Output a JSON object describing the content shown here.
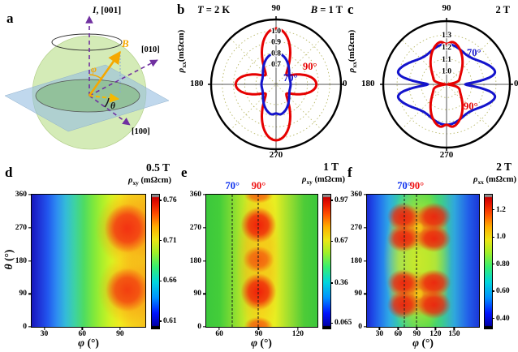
{
  "panels": {
    "a": {
      "letter": "a",
      "axis_top_sym": "I",
      "axis_top_rest": ", [001]",
      "axis_right": "[010]",
      "axis_front": "[100]",
      "field": "B",
      "phi": "φ",
      "theta": "θ"
    },
    "b": {
      "letter": "b",
      "t_sym": "T",
      "t_rest": " = 2 K",
      "b_sym": "B",
      "b_rest": " = 1 T",
      "rho": "ρ",
      "rho_sub": "xx",
      "rho_units": "(mΩcm)"
    },
    "c": {
      "letter": "c",
      "title": "2 T",
      "rho": "ρ",
      "rho_sub": "xx",
      "rho_units": "(mΩcm)"
    },
    "d": {
      "letter": "d",
      "title": "0.5 T",
      "rho": "ρ",
      "rho_sub": "xy",
      "rho_units": " (mΩcm)",
      "x_sym": "φ",
      "x_unit": " (°)",
      "y_sym": "θ",
      "y_unit": " (°)"
    },
    "e": {
      "letter": "e",
      "title": "1 T",
      "rho": "ρ",
      "rho_sub": "xy",
      "rho_units": " (mΩcm)",
      "x_sym": "φ",
      "x_unit": " (°)"
    },
    "f": {
      "letter": "f",
      "title": "2 T",
      "rho": "ρ",
      "rho_sub": "xx",
      "rho_units": " (mΩcm)",
      "x_sym": "φ",
      "x_unit": " (°)"
    }
  },
  "chart_data": [
    {
      "id": "b",
      "type": "polar",
      "temperature": "T = 2 K",
      "field": "B = 1 T",
      "radial_axis": {
        "label": "ρxx (mΩcm)",
        "min": 0.52,
        "max": 1.1,
        "ticks": [
          {
            "v": 0.7,
            "label": "0.7"
          },
          {
            "v": 0.8,
            "label": "0.8"
          },
          {
            "v": 0.9,
            "label": "0.9"
          },
          {
            "v": 1.0,
            "label": "1.0"
          }
        ]
      },
      "angle_ticks": [
        {
          "angle": 0,
          "label": "0"
        },
        {
          "angle": 90,
          "label": "90"
        },
        {
          "angle": 180,
          "label": "180"
        },
        {
          "angle": 270,
          "label": "270"
        }
      ],
      "series": [
        {
          "name": "90°",
          "color": "#e60000",
          "description": "four-lobed ρxx(angle): max ≈1.02 mΩcm at 90°/270°, ≈0.88 at 0°/180°, min ≈0.65 on diagonals",
          "base": 0.8,
          "harmonics": [
            {
              "k": 2,
              "amp": -0.07,
              "phase": 0
            },
            {
              "k": 4,
              "amp": 0.15,
              "phase": 0
            }
          ],
          "notches": []
        },
        {
          "name": "70°",
          "color": "#1414cc",
          "description": "small vertical peanut: max ≈0.78 at 90°/270°, min ≈0.65 at 0°/180°",
          "base": 0.705,
          "harmonics": [
            {
              "k": 2,
              "amp": 0.075,
              "phase": 90
            },
            {
              "k": 4,
              "amp": 0.02,
              "phase": 0
            }
          ],
          "notches": [
            {
              "angle": 90,
              "depth": 0.02,
              "width": 6
            },
            {
              "angle": 270,
              "depth": 0.02,
              "width": 6
            }
          ]
        }
      ]
    },
    {
      "id": "c",
      "type": "polar",
      "field": "2 T",
      "radial_axis": {
        "label": "ρxx (mΩcm)",
        "min": 0.89,
        "max": 1.415,
        "ticks": [
          {
            "v": 1.0,
            "label": "1.0"
          },
          {
            "v": 1.1,
            "label": "1.1"
          },
          {
            "v": 1.2,
            "label": "1.2"
          },
          {
            "v": 1.3,
            "label": "1.3"
          }
        ]
      },
      "angle_ticks": [
        {
          "angle": 0,
          "label": "0"
        },
        {
          "angle": 90,
          "label": "90"
        },
        {
          "angle": 180,
          "label": "180"
        },
        {
          "angle": 270,
          "label": "270"
        }
      ],
      "series": [
        {
          "name": "70°",
          "color": "#1414cc",
          "description": "horizontal butterfly: wings ≈1.30-1.33 near 0°/180°, pinched notch to ≈1.0 exactly at 0°/180°, ≈1.22 at 90°/270°",
          "base": 1.24,
          "harmonics": [
            {
              "k": 2,
              "amp": 0.06,
              "phase": 0
            },
            {
              "k": 4,
              "amp": 0.045,
              "phase": 0
            }
          ],
          "notches": [
            {
              "angle": 0,
              "depth": 0.3,
              "width": 8
            },
            {
              "angle": 180,
              "depth": 0.3,
              "width": 8
            }
          ]
        },
        {
          "name": "90°",
          "color": "#e60000",
          "description": "vertical butterfly: lobes ≈1.23 at 90°/270° with small cleft, deep pinch toward center at 0°/180°",
          "base": 1.1,
          "harmonics": [
            {
              "k": 2,
              "amp": 0.13,
              "phase": 90
            },
            {
              "k": 4,
              "amp": 0.03,
              "phase": 0
            }
          ],
          "notches": [
            {
              "angle": 0,
              "depth": 0.15,
              "width": 10
            },
            {
              "angle": 180,
              "depth": 0.15,
              "width": 10
            },
            {
              "angle": 90,
              "depth": 0.035,
              "width": 6
            },
            {
              "angle": 270,
              "depth": 0.035,
              "width": 6
            }
          ]
        }
      ]
    },
    {
      "id": "d",
      "type": "heatmap",
      "title": "0.5 T",
      "zlabel": "ρxy (mΩcm)",
      "description": "ρxy rises from ≈0.61 (blue, small φ) to ≈0.76 (red) near φ≈88°; hotspots at (φ≈88°, θ≈95°) and (φ≈88°, θ≈275°)",
      "x": {
        "label": "φ (°)",
        "min": 20,
        "max": 110,
        "ticks": [
          {
            "v": 30,
            "label": "30"
          },
          {
            "v": 60,
            "label": "60"
          },
          {
            "v": 90,
            "label": "90"
          }
        ]
      },
      "y": {
        "label": "θ (°)",
        "min": 0,
        "max": 360,
        "ticks": [
          {
            "v": 0,
            "label": "0"
          },
          {
            "v": 90,
            "label": "90"
          },
          {
            "v": 180,
            "label": "180"
          },
          {
            "v": 270,
            "label": "270"
          },
          {
            "v": 360,
            "label": "360"
          }
        ]
      },
      "markers": [],
      "colorbar": {
        "min": 0.605,
        "max": 0.765,
        "ticks": [
          {
            "v": 0.61,
            "label": "0.61"
          },
          {
            "v": 0.66,
            "label": "0.66"
          },
          {
            "v": 0.71,
            "label": "0.71"
          },
          {
            "v": 0.76,
            "label": "0.76"
          }
        ]
      },
      "field": {
        "base_stops": [
          [
            0,
            "#1717bb"
          ],
          [
            0.06,
            "#1e30d6"
          ],
          [
            0.14,
            "#2256ee"
          ],
          [
            0.22,
            "#2e8df2"
          ],
          [
            0.3,
            "#34bcd9"
          ],
          [
            0.38,
            "#3ed3a2"
          ],
          [
            0.46,
            "#4fdc62"
          ],
          [
            0.54,
            "#7ce83e"
          ],
          [
            0.62,
            "#abf02c"
          ],
          [
            0.7,
            "#d7f222"
          ],
          [
            0.78,
            "#f2ea1e"
          ],
          [
            0.86,
            "#f6d51d"
          ],
          [
            1,
            "#f5c21b"
          ]
        ],
        "blobs": [
          {
            "x": 0.86,
            "y": 0.26,
            "rx": 0.3,
            "ry": 0.28,
            "color": "#fb8c12",
            "alpha": 0.55
          },
          {
            "x": 0.86,
            "y": 0.72,
            "rx": 0.28,
            "ry": 0.26,
            "color": "#fb8c12",
            "alpha": 0.5
          },
          {
            "x": 0.84,
            "y": 0.255,
            "rx": 0.2,
            "ry": 0.185,
            "color": "#f32c12",
            "alpha": 0.95
          },
          {
            "x": 0.84,
            "y": 0.72,
            "rx": 0.19,
            "ry": 0.165,
            "color": "#f3330f",
            "alpha": 0.9
          }
        ]
      }
    },
    {
      "id": "e",
      "type": "heatmap",
      "title": "1 T",
      "zlabel": "ρxy (mΩcm)",
      "description": "green/yellow background ≈0.5-0.7; red maxima ≈0.97 along φ≈90° at θ≈95° and θ≈275°, weaker at θ≈0°,185°,360°; dashed guides at φ=70° and 90°",
      "x": {
        "label": "φ (°)",
        "min": 50,
        "max": 135,
        "ticks": [
          {
            "v": 60,
            "label": "60"
          },
          {
            "v": 90,
            "label": "90"
          },
          {
            "v": 120,
            "label": "120"
          }
        ]
      },
      "y": {
        "label": "",
        "min": 0,
        "max": 360,
        "ticks": [
          {
            "v": 0,
            "label": "0"
          },
          {
            "v": 90,
            "label": "90"
          },
          {
            "v": 180,
            "label": "180"
          },
          {
            "v": 270,
            "label": "270"
          },
          {
            "v": 360,
            "label": "360"
          }
        ]
      },
      "markers": [
        {
          "v": 70,
          "label": "70°",
          "color": "#1133ee"
        },
        {
          "v": 90,
          "label": "90°",
          "color": "#ee1111"
        }
      ],
      "colorbar": {
        "min": 0.05,
        "max": 1.0,
        "ticks": [
          {
            "v": 0.065,
            "label": "0.065"
          },
          {
            "v": 0.36,
            "label": "0.36"
          },
          {
            "v": 0.67,
            "label": "0.67"
          },
          {
            "v": 0.97,
            "label": "0.97"
          }
        ]
      },
      "field": {
        "base_stops": [
          [
            0,
            "#3cc83c"
          ],
          [
            0.12,
            "#44ce3a"
          ],
          [
            0.25,
            "#8ade32"
          ],
          [
            0.38,
            "#d8ee24"
          ],
          [
            0.5,
            "#f4ee1f"
          ],
          [
            0.62,
            "#e8ee22"
          ],
          [
            0.75,
            "#9ade30"
          ],
          [
            0.88,
            "#4ecc38"
          ],
          [
            1,
            "#3cc83c"
          ]
        ],
        "blobs": [
          {
            "x": 0.47,
            "y": 0.5,
            "rx": 0.2,
            "ry": 0.62,
            "color": "#f8a814",
            "alpha": 0.55
          },
          {
            "x": 0.47,
            "y": 0.49,
            "rx": 0.14,
            "ry": 0.1,
            "color": "#f4490c",
            "alpha": 0.8
          },
          {
            "x": 0.47,
            "y": 0.995,
            "rx": 0.13,
            "ry": 0.07,
            "color": "#f4490c",
            "alpha": 0.8
          },
          {
            "x": 0.47,
            "y": 0.005,
            "rx": 0.13,
            "ry": 0.06,
            "color": "#f4490c",
            "alpha": 0.75
          },
          {
            "x": 0.47,
            "y": 0.23,
            "rx": 0.16,
            "ry": 0.135,
            "color": "#f01808",
            "alpha": 0.95
          },
          {
            "x": 0.47,
            "y": 0.735,
            "rx": 0.16,
            "ry": 0.14,
            "color": "#f01808",
            "alpha": 0.95
          }
        ]
      }
    },
    {
      "id": "f",
      "type": "heatmap",
      "title": "2 T",
      "zlabel": "ρxx (mΩcm)",
      "description": "blue edges ≈0.4; two large red butterfly clusters ≈1.2-1.3 centered near (φ≈88°, θ≈90°) and (φ≈88°, θ≈270°), each with lobes at φ≈60° and φ≈115°; dashed guides at φ=70° and 90°",
      "x": {
        "label": "φ (°)",
        "min": 10,
        "max": 190,
        "ticks": [
          {
            "v": 30,
            "label": "30"
          },
          {
            "v": 60,
            "label": "60"
          },
          {
            "v": 90,
            "label": "90"
          },
          {
            "v": 120,
            "label": "120"
          },
          {
            "v": 150,
            "label": "150"
          }
        ]
      },
      "y": {
        "label": "",
        "min": 0,
        "max": 360,
        "ticks": [
          {
            "v": 0,
            "label": "0"
          },
          {
            "v": 90,
            "label": "90"
          },
          {
            "v": 180,
            "label": "180"
          },
          {
            "v": 270,
            "label": "270"
          },
          {
            "v": 360,
            "label": "360"
          }
        ]
      },
      "markers": [
        {
          "v": 70,
          "label": "70°",
          "color": "#1133ee"
        },
        {
          "v": 90,
          "label": "90°",
          "color": "#ee1111"
        }
      ],
      "colorbar": {
        "min": 0.35,
        "max": 1.3,
        "ticks": [
          {
            "v": 0.4,
            "label": "0.40"
          },
          {
            "v": 0.6,
            "label": "0.60"
          },
          {
            "v": 0.8,
            "label": "0.80"
          },
          {
            "v": 1.0,
            "label": "1.0"
          },
          {
            "v": 1.2,
            "label": "1.2"
          }
        ]
      },
      "field": {
        "base_stops": [
          [
            0,
            "#1a2ad2"
          ],
          [
            0.05,
            "#1e48e6"
          ],
          [
            0.12,
            "#2476ee"
          ],
          [
            0.2,
            "#2fabe4"
          ],
          [
            0.3,
            "#38cf9c"
          ],
          [
            0.42,
            "#4ad763"
          ],
          [
            0.55,
            "#52da4e"
          ],
          [
            0.66,
            "#40cf85"
          ],
          [
            0.78,
            "#30a8dd"
          ],
          [
            0.9,
            "#2361ea"
          ],
          [
            1,
            "#1c38d8"
          ]
        ],
        "blobs": [
          {
            "x": 0.45,
            "y": 0.5,
            "rx": 0.3,
            "ry": 0.58,
            "color": "#e9ee1f",
            "alpha": 0.8
          },
          {
            "x": 0.46,
            "y": 0.25,
            "rx": 0.27,
            "ry": 0.17,
            "color": "#f87c10",
            "alpha": 0.85
          },
          {
            "x": 0.46,
            "y": 0.75,
            "rx": 0.27,
            "ry": 0.17,
            "color": "#f87c10",
            "alpha": 0.85
          },
          {
            "x": 0.32,
            "y": 0.165,
            "rx": 0.14,
            "ry": 0.105,
            "color": "#ef1d0d",
            "alpha": 0.92
          },
          {
            "x": 0.6,
            "y": 0.165,
            "rx": 0.15,
            "ry": 0.105,
            "color": "#ef1d0d",
            "alpha": 0.92
          },
          {
            "x": 0.32,
            "y": 0.335,
            "rx": 0.14,
            "ry": 0.1,
            "color": "#ef1d0d",
            "alpha": 0.92
          },
          {
            "x": 0.6,
            "y": 0.335,
            "rx": 0.15,
            "ry": 0.1,
            "color": "#ef1d0d",
            "alpha": 0.92
          },
          {
            "x": 0.32,
            "y": 0.665,
            "rx": 0.14,
            "ry": 0.1,
            "color": "#ef1d0d",
            "alpha": 0.92
          },
          {
            "x": 0.6,
            "y": 0.665,
            "rx": 0.15,
            "ry": 0.1,
            "color": "#ef1d0d",
            "alpha": 0.92
          },
          {
            "x": 0.32,
            "y": 0.835,
            "rx": 0.14,
            "ry": 0.105,
            "color": "#ef1d0d",
            "alpha": 0.92
          },
          {
            "x": 0.6,
            "y": 0.835,
            "rx": 0.15,
            "ry": 0.105,
            "color": "#ef1d0d",
            "alpha": 0.92
          },
          {
            "x": 0.46,
            "y": 0.25,
            "rx": 0.05,
            "ry": 0.045,
            "color": "#f6d216",
            "alpha": 0.85
          },
          {
            "x": 0.46,
            "y": 0.75,
            "rx": 0.05,
            "ry": 0.045,
            "color": "#f6d216",
            "alpha": 0.85
          }
        ]
      }
    }
  ]
}
